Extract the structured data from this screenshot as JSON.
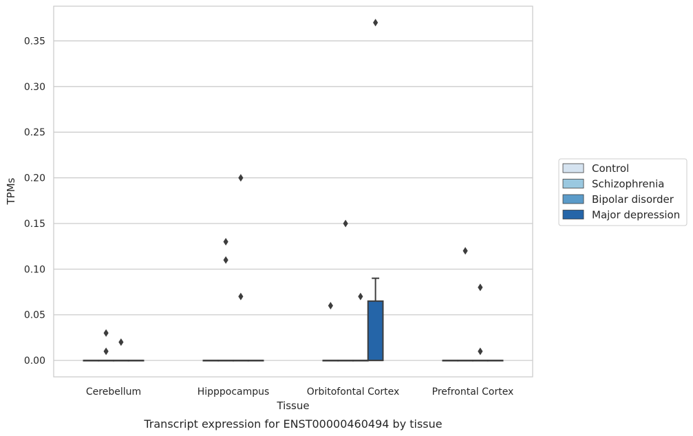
{
  "chart_data": {
    "type": "box",
    "title": "",
    "caption": "Transcript expression for ENST00000460494 by tissue",
    "xlabel": "Tissue",
    "ylabel": "TPMs",
    "ylim": [
      -0.018,
      0.388
    ],
    "yticks": [
      "0.00",
      "0.05",
      "0.10",
      "0.15",
      "0.20",
      "0.25",
      "0.30",
      "0.35"
    ],
    "grid": "horizontal",
    "legend_position": "right",
    "categories": [
      "Cerebellum",
      "Hipppocampus",
      "Orbitofontal Cortex",
      "Prefrontal Cortex"
    ],
    "series": [
      {
        "name": "Control",
        "color": "#d5e3f0",
        "boxes": [
          {
            "q1": 0,
            "median": 0,
            "q3": 0,
            "whisker_low": 0,
            "whisker_high": 0,
            "outliers": []
          },
          {
            "q1": 0,
            "median": 0,
            "q3": 0,
            "whisker_low": 0,
            "whisker_high": 0,
            "outliers": []
          },
          {
            "q1": 0,
            "median": 0,
            "q3": 0,
            "whisker_low": 0,
            "whisker_high": 0,
            "outliers": [
              0.06
            ]
          },
          {
            "q1": 0,
            "median": 0,
            "q3": 0,
            "whisker_low": 0,
            "whisker_high": 0,
            "outliers": []
          }
        ]
      },
      {
        "name": "Schizophrenia",
        "color": "#9ac8e0",
        "boxes": [
          {
            "q1": 0,
            "median": 0,
            "q3": 0,
            "whisker_low": 0,
            "whisker_high": 0,
            "outliers": [
              0.03,
              0.01
            ]
          },
          {
            "q1": 0,
            "median": 0,
            "q3": 0,
            "whisker_low": 0,
            "whisker_high": 0,
            "outliers": [
              0.13,
              0.11
            ]
          },
          {
            "q1": 0,
            "median": 0,
            "q3": 0,
            "whisker_low": 0,
            "whisker_high": 0,
            "outliers": [
              0.15
            ]
          },
          {
            "q1": 0,
            "median": 0,
            "q3": 0,
            "whisker_low": 0,
            "whisker_high": 0,
            "outliers": [
              0.12
            ]
          }
        ]
      },
      {
        "name": "Bipolar disorder",
        "color": "#5b9bc9",
        "boxes": [
          {
            "q1": 0,
            "median": 0,
            "q3": 0,
            "whisker_low": 0,
            "whisker_high": 0,
            "outliers": [
              0.02
            ]
          },
          {
            "q1": 0,
            "median": 0,
            "q3": 0,
            "whisker_low": 0,
            "whisker_high": 0,
            "outliers": [
              0.2,
              0.07
            ]
          },
          {
            "q1": 0,
            "median": 0,
            "q3": 0,
            "whisker_low": 0,
            "whisker_high": 0,
            "outliers": [
              0.07
            ]
          },
          {
            "q1": 0,
            "median": 0,
            "q3": 0,
            "whisker_low": 0,
            "whisker_high": 0,
            "outliers": [
              0.08,
              0.01
            ]
          }
        ]
      },
      {
        "name": "Major depression",
        "color": "#2565a8",
        "boxes": [
          {
            "q1": 0,
            "median": 0,
            "q3": 0,
            "whisker_low": 0,
            "whisker_high": 0,
            "outliers": []
          },
          {
            "q1": 0,
            "median": 0,
            "q3": 0,
            "whisker_low": 0,
            "whisker_high": 0,
            "outliers": []
          },
          {
            "q1": 0,
            "median": 0,
            "q3": 0.065,
            "whisker_low": 0,
            "whisker_high": 0.09,
            "outliers": [
              0.37
            ]
          },
          {
            "q1": 0,
            "median": 0,
            "q3": 0,
            "whisker_low": 0,
            "whisker_high": 0,
            "outliers": []
          }
        ]
      }
    ]
  }
}
